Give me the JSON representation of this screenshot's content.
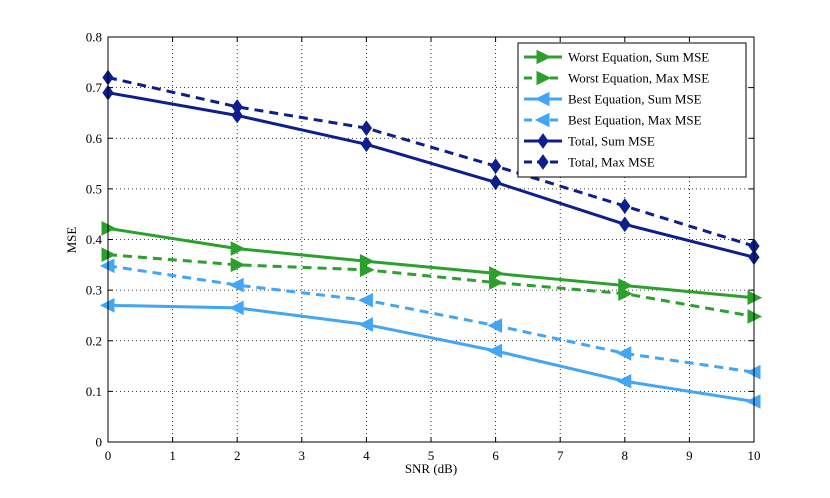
{
  "chart_data": {
    "type": "line",
    "title": "",
    "xlabel": "SNR (dB)",
    "ylabel": "MSE",
    "xlim": [
      0,
      10
    ],
    "ylim": [
      0,
      0.8
    ],
    "grid": true,
    "legend_position": "top-right",
    "x_ticks": [
      0,
      1,
      2,
      3,
      4,
      5,
      6,
      7,
      8,
      9,
      10
    ],
    "x_tick_labels": [
      "0",
      "1",
      "2",
      "3",
      "4",
      "5",
      "6",
      "7",
      "8",
      "9",
      "10"
    ],
    "y_ticks": [
      0,
      0.1,
      0.2,
      0.3,
      0.4,
      0.5,
      0.6,
      0.7,
      0.8
    ],
    "y_tick_labels": [
      "0",
      "0.1",
      "0.2",
      "0.3",
      "0.4",
      "0.5",
      "0.6",
      "0.7",
      "0.8"
    ],
    "x": [
      0,
      2,
      4,
      6,
      8,
      10
    ],
    "series": [
      {
        "name": "Worst Equation, Sum MSE",
        "color": "#2ca02c",
        "style": "solid",
        "marker": "triangle-right",
        "values": [
          0.422,
          0.382,
          0.357,
          0.333,
          0.309,
          0.285
        ]
      },
      {
        "name": "Worst Equation, Max MSE",
        "color": "#2ca02c",
        "style": "dashed",
        "marker": "triangle-right",
        "values": [
          0.37,
          0.35,
          0.34,
          0.315,
          0.293,
          0.248
        ]
      },
      {
        "name": "Best Equation, Sum MSE",
        "color": "#42a5f5",
        "style": "solid",
        "marker": "triangle-left",
        "values": [
          0.27,
          0.265,
          0.232,
          0.18,
          0.12,
          0.08
        ]
      },
      {
        "name": "Best Equation, Max MSE",
        "color": "#42a5f5",
        "style": "dashed",
        "marker": "triangle-left",
        "values": [
          0.348,
          0.31,
          0.28,
          0.23,
          0.175,
          0.138
        ]
      },
      {
        "name": "Total, Sum MSE",
        "color": "#0d1f8c",
        "style": "solid",
        "marker": "diamond",
        "values": [
          0.69,
          0.645,
          0.588,
          0.513,
          0.43,
          0.365
        ]
      },
      {
        "name": "Total, Max MSE",
        "color": "#0d1f8c",
        "style": "dashed",
        "marker": "diamond",
        "values": [
          0.72,
          0.662,
          0.62,
          0.545,
          0.466,
          0.387
        ]
      }
    ]
  }
}
